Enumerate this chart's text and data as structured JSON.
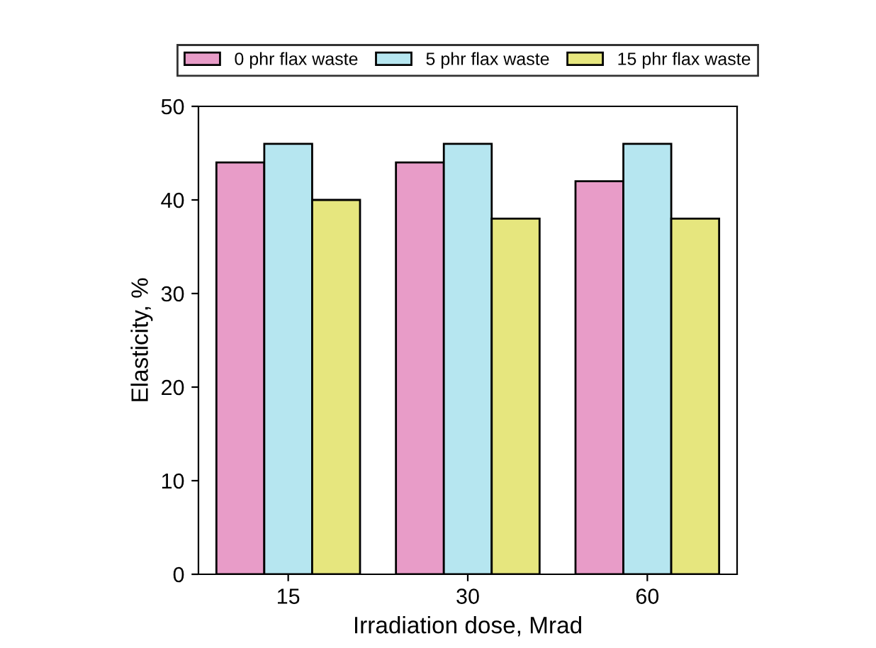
{
  "chart_data": {
    "type": "bar",
    "xlabel": "Irradiation dose, Mrad",
    "ylabel": "Elasticity, %",
    "categories": [
      "15",
      "30",
      "60"
    ],
    "series": [
      {
        "name": "0 phr flax waste",
        "color": "#e89cc8",
        "values": [
          44,
          44,
          42
        ]
      },
      {
        "name": "5 phr flax waste",
        "color": "#b6e6f0",
        "values": [
          46,
          46,
          46
        ]
      },
      {
        "name": "15 phr flax waste",
        "color": "#e6e67e",
        "values": [
          40,
          38,
          38
        ]
      }
    ],
    "ylim": [
      0,
      50
    ],
    "yticks": [
      0,
      10,
      20,
      30,
      40,
      50
    ],
    "grid": false,
    "legend": "top"
  }
}
